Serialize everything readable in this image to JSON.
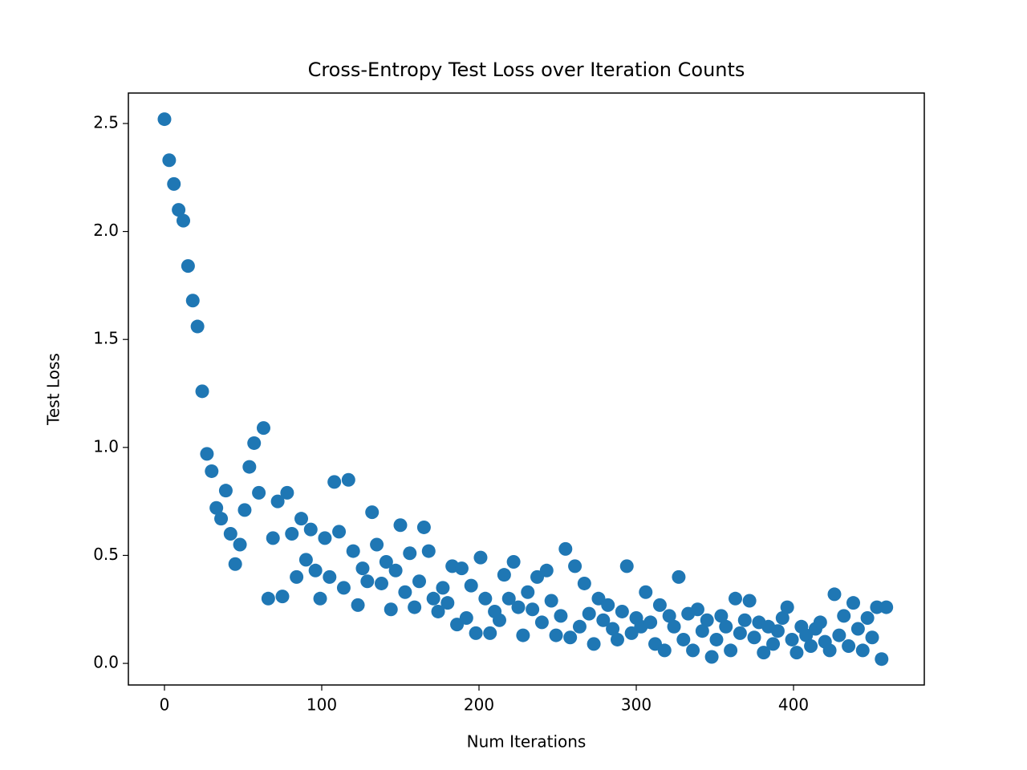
{
  "chart_data": {
    "type": "scatter",
    "title": "Cross-Entropy Test Loss over Iteration Counts",
    "xlabel": "Num Iterations",
    "ylabel": "Test Loss",
    "color": "#1f77b4",
    "xlim": [
      -22.95,
      483.15
    ],
    "ylim": [
      -0.1,
      2.641
    ],
    "xticks": [
      0,
      100,
      200,
      300,
      400
    ],
    "yticks": [
      {
        "value": 0,
        "label": "0.0"
      },
      0.5,
      {
        "value": 1,
        "label": "1.0"
      },
      1.5,
      {
        "value": 2,
        "label": "2.0"
      },
      2.5
    ],
    "x": [
      0,
      3,
      6,
      9,
      12,
      15,
      18,
      21,
      24,
      27,
      30,
      33,
      36,
      39,
      42,
      45,
      48,
      51,
      54,
      57,
      60,
      63,
      66,
      69,
      72,
      75,
      78,
      81,
      84,
      87,
      90,
      93,
      96,
      99,
      102,
      105,
      108,
      111,
      114,
      117,
      120,
      123,
      126,
      129,
      132,
      135,
      138,
      141,
      144,
      147,
      150,
      153,
      156,
      159,
      162,
      165,
      168,
      171,
      174,
      177,
      180,
      183,
      186,
      189,
      192,
      195,
      198,
      201,
      204,
      207,
      210,
      213,
      216,
      219,
      222,
      225,
      228,
      231,
      234,
      237,
      240,
      243,
      246,
      249,
      252,
      255,
      258,
      261,
      264,
      267,
      270,
      273,
      276,
      279,
      282,
      285,
      288,
      291,
      294,
      297,
      300,
      303,
      306,
      309,
      312,
      315,
      318,
      321,
      324,
      327,
      330,
      333,
      336,
      339,
      342,
      345,
      348,
      351,
      354,
      357,
      360,
      363,
      366,
      369,
      372,
      375,
      378,
      381,
      384,
      387,
      390,
      393,
      396,
      399,
      402,
      405,
      408,
      411,
      414,
      417,
      420,
      423,
      426,
      429,
      432,
      435,
      438,
      441,
      444,
      447,
      450,
      453,
      456,
      459
    ],
    "y": [
      2.52,
      2.33,
      2.22,
      2.1,
      2.05,
      1.84,
      1.68,
      1.56,
      1.26,
      0.97,
      0.89,
      0.72,
      0.67,
      0.8,
      0.6,
      0.46,
      0.55,
      0.71,
      0.91,
      1.02,
      0.79,
      1.09,
      0.3,
      0.58,
      0.75,
      0.31,
      0.79,
      0.6,
      0.4,
      0.67,
      0.48,
      0.62,
      0.43,
      0.3,
      0.58,
      0.4,
      0.84,
      0.61,
      0.35,
      0.85,
      0.52,
      0.27,
      0.44,
      0.38,
      0.7,
      0.55,
      0.37,
      0.47,
      0.25,
      0.43,
      0.64,
      0.33,
      0.51,
      0.26,
      0.38,
      0.63,
      0.52,
      0.3,
      0.24,
      0.35,
      0.28,
      0.45,
      0.18,
      0.44,
      0.21,
      0.36,
      0.14,
      0.49,
      0.3,
      0.14,
      0.24,
      0.2,
      0.41,
      0.3,
      0.47,
      0.26,
      0.13,
      0.33,
      0.25,
      0.4,
      0.19,
      0.43,
      0.29,
      0.13,
      0.22,
      0.53,
      0.12,
      0.45,
      0.17,
      0.37,
      0.23,
      0.09,
      0.3,
      0.2,
      0.27,
      0.16,
      0.11,
      0.24,
      0.45,
      0.14,
      0.21,
      0.17,
      0.33,
      0.19,
      0.09,
      0.27,
      0.06,
      0.22,
      0.17,
      0.4,
      0.11,
      0.23,
      0.06,
      0.25,
      0.15,
      0.2,
      0.03,
      0.11,
      0.22,
      0.17,
      0.06,
      0.3,
      0.14,
      0.2,
      0.29,
      0.12,
      0.19,
      0.05,
      0.17,
      0.09,
      0.15,
      0.21,
      0.26,
      0.11,
      0.05,
      0.17,
      0.13,
      0.08,
      0.16,
      0.19,
      0.1,
      0.06,
      0.32,
      0.13,
      0.22,
      0.08,
      0.28,
      0.16,
      0.06,
      0.21,
      0.12,
      0.26,
      0.02,
      0.26
    ]
  }
}
